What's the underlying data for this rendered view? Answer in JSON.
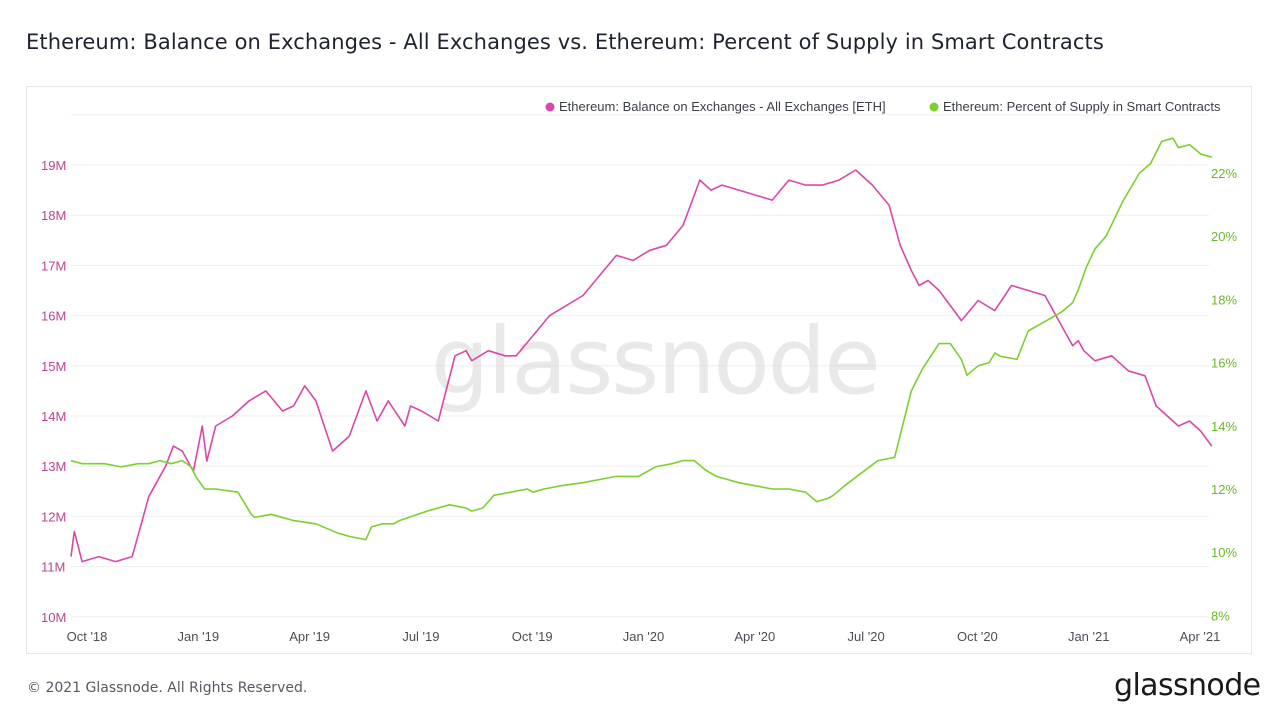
{
  "title": "Ethereum: Balance on Exchanges - All Exchanges vs. Ethereum: Percent of Supply in Smart Contracts",
  "footer": "© 2021 Glassnode. All Rights Reserved.",
  "brand": "glassnode",
  "watermark": "glassnode",
  "colors": {
    "balance": "#d948a8",
    "percent": "#7ccf2e",
    "left_axis_text": "#c0428f",
    "right_axis_text": "#6cb82d",
    "grid": "#eceef1"
  },
  "chart_data": {
    "type": "line",
    "x_labels": [
      "Oct '18",
      "Jan '19",
      "Apr '19",
      "Jul '19",
      "Oct '19",
      "Jan '20",
      "Apr '20",
      "Jul '20",
      "Oct '20",
      "Jan '21",
      "Apr '21"
    ],
    "y_left": {
      "ticks": [
        "10M",
        "11M",
        "12M",
        "13M",
        "14M",
        "15M",
        "16M",
        "17M",
        "18M",
        "19M"
      ],
      "range": [
        10,
        19.9
      ]
    },
    "y_right": {
      "ticks": [
        "8%",
        "10%",
        "12%",
        "14%",
        "16%",
        "18%",
        "20%",
        "22%"
      ],
      "range": [
        8,
        23.5
      ]
    },
    "legend_position": "top-right",
    "grid": true,
    "series": [
      {
        "name": "Ethereum: Balance on Exchanges - All Exchanges [ETH]",
        "axis": "left",
        "unit": "M ETH",
        "x": [
          0,
          0.03,
          0.1,
          0.25,
          0.4,
          0.55,
          0.7,
          0.85,
          0.92,
          1.0,
          1.1,
          1.18,
          1.22,
          1.3,
          1.45,
          1.6,
          1.75,
          1.9,
          2.0,
          2.1,
          2.2,
          2.35,
          2.5,
          2.65,
          2.75,
          2.85,
          3.0,
          3.05,
          3.15,
          3.3,
          3.45,
          3.55,
          3.6,
          3.75,
          3.9,
          4.0,
          4.15,
          4.3,
          4.45,
          4.6,
          4.75,
          4.9,
          5.05,
          5.2,
          5.35,
          5.5,
          5.65,
          5.75,
          5.85,
          6.0,
          6.15,
          6.3,
          6.45,
          6.6,
          6.75,
          6.9,
          7.05,
          7.2,
          7.35,
          7.45,
          7.55,
          7.62,
          7.7,
          7.8,
          7.9,
          8.0,
          8.15,
          8.3,
          8.45,
          8.6,
          8.75,
          8.85,
          8.95,
          9.0,
          9.05,
          9.1,
          9.2,
          9.35,
          9.5,
          9.65,
          9.75,
          9.85,
          9.95,
          10.05,
          10.15,
          10.25
        ],
        "values": [
          11.2,
          11.7,
          11.1,
          11.2,
          11.1,
          11.2,
          12.4,
          13.0,
          13.4,
          13.3,
          12.9,
          13.8,
          13.1,
          13.8,
          14.0,
          14.3,
          14.5,
          14.1,
          14.2,
          14.6,
          14.3,
          13.3,
          13.6,
          14.5,
          13.9,
          14.3,
          13.8,
          14.2,
          14.1,
          13.9,
          15.2,
          15.3,
          15.1,
          15.3,
          15.2,
          15.2,
          15.6,
          16.0,
          16.2,
          16.4,
          16.8,
          17.2,
          17.1,
          17.3,
          17.4,
          17.8,
          18.7,
          18.5,
          18.6,
          18.5,
          18.4,
          18.3,
          18.7,
          18.6,
          18.6,
          18.7,
          18.9,
          18.6,
          18.2,
          17.4,
          16.9,
          16.6,
          16.7,
          16.5,
          16.2,
          15.9,
          16.3,
          16.1,
          16.6,
          16.5,
          16.4,
          16.0,
          15.6,
          15.4,
          15.5,
          15.3,
          15.1,
          15.2,
          14.9,
          14.8,
          14.2,
          14.0,
          13.8,
          13.9,
          13.7,
          13.4
        ]
      },
      {
        "name": "Ethereum: Percent of Supply in Smart Contracts",
        "axis": "right",
        "unit": "%",
        "x": [
          0,
          0.1,
          0.3,
          0.45,
          0.6,
          0.7,
          0.8,
          0.9,
          1.0,
          1.08,
          1.12,
          1.2,
          1.3,
          1.5,
          1.62,
          1.65,
          1.8,
          2.0,
          2.2,
          2.4,
          2.5,
          2.65,
          2.7,
          2.8,
          2.9,
          2.95,
          3.2,
          3.4,
          3.55,
          3.6,
          3.7,
          3.8,
          4.1,
          4.15,
          4.25,
          4.4,
          4.6,
          4.75,
          4.9,
          5.1,
          5.25,
          5.4,
          5.5,
          5.6,
          5.7,
          5.8,
          6.0,
          6.15,
          6.3,
          6.45,
          6.6,
          6.7,
          6.8,
          6.85,
          6.95,
          7.1,
          7.25,
          7.4,
          7.55,
          7.65,
          7.8,
          7.9,
          8.0,
          8.05,
          8.15,
          8.25,
          8.3,
          8.35,
          8.5,
          8.6,
          8.7,
          8.8,
          8.9,
          9.0,
          9.05,
          9.12,
          9.2,
          9.3,
          9.45,
          9.6,
          9.7,
          9.8,
          9.9,
          9.95,
          10.05,
          10.15,
          10.25
        ],
        "values": [
          12.9,
          12.8,
          12.8,
          12.7,
          12.8,
          12.8,
          12.9,
          12.8,
          12.9,
          12.7,
          12.4,
          12.0,
          12.0,
          11.9,
          11.2,
          11.1,
          11.2,
          11.0,
          10.9,
          10.6,
          10.5,
          10.4,
          10.8,
          10.9,
          10.9,
          11.0,
          11.3,
          11.5,
          11.4,
          11.3,
          11.4,
          11.8,
          12.0,
          11.9,
          12.0,
          12.1,
          12.2,
          12.3,
          12.4,
          12.4,
          12.7,
          12.8,
          12.9,
          12.9,
          12.6,
          12.4,
          12.2,
          12.1,
          12.0,
          12.0,
          11.9,
          11.6,
          11.7,
          11.8,
          12.1,
          12.5,
          12.9,
          13.0,
          15.1,
          15.8,
          16.6,
          16.6,
          16.1,
          15.6,
          15.9,
          16.0,
          16.3,
          16.2,
          16.1,
          17.0,
          17.2,
          17.4,
          17.6,
          17.9,
          18.3,
          19.0,
          19.6,
          20.0,
          21.1,
          22.0,
          22.3,
          23.0,
          23.1,
          22.8,
          22.9,
          22.6,
          22.5
        ]
      }
    ]
  }
}
